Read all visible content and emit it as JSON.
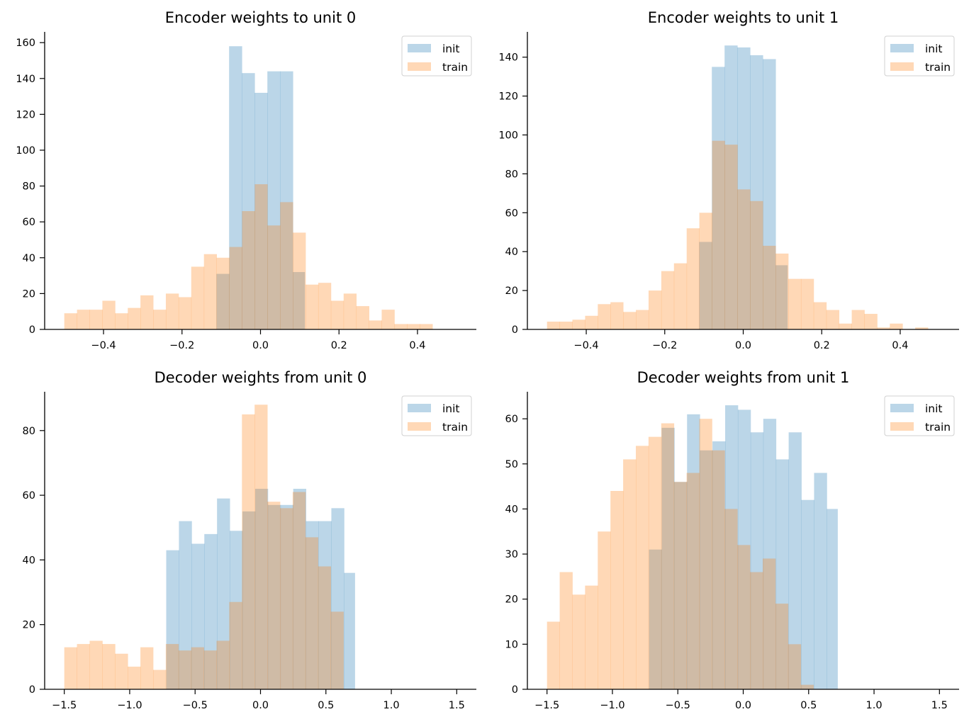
{
  "colors": {
    "init": "#1f77b4",
    "train": "#ff7f0e"
  },
  "chart_data": [
    {
      "type": "histogram",
      "title": "Encoder weights to unit 0",
      "xlim": [
        -0.55,
        0.55
      ],
      "ylim": [
        0,
        166
      ],
      "xticks": [
        -0.4,
        -0.2,
        0.0,
        0.2,
        0.4
      ],
      "xtick_labels": [
        "−0.4",
        "−0.2",
        "0.0",
        "0.2",
        "0.4"
      ],
      "yticks": [
        0,
        20,
        40,
        60,
        80,
        100,
        120,
        140,
        160
      ],
      "ytick_labels": [
        "0",
        "20",
        "40",
        "60",
        "80",
        "100",
        "120",
        "140",
        "160"
      ],
      "legend": {
        "position": "upper-right",
        "entries": [
          "init",
          "train"
        ]
      },
      "series": [
        {
          "name": "init",
          "bins": [
            -0.1125,
            -0.08,
            -0.0475,
            -0.015,
            0.0175,
            0.05,
            0.0825,
            0.1125
          ],
          "counts": [
            31,
            158,
            143,
            132,
            144,
            144,
            32
          ]
        },
        {
          "name": "train",
          "bins": [
            -0.5,
            -0.4676,
            -0.4353,
            -0.4029,
            -0.3706,
            -0.3382,
            -0.3059,
            -0.2735,
            -0.2412,
            -0.2088,
            -0.1765,
            -0.1441,
            -0.1118,
            -0.0794,
            -0.0471,
            -0.0147,
            0.0176,
            0.05,
            0.0824,
            0.1147,
            0.1471,
            0.1794,
            0.2118,
            0.2441,
            0.2765,
            0.3088,
            0.3412,
            0.3735,
            0.4059,
            0.4382
          ],
          "counts": [
            9,
            11,
            11,
            16,
            9,
            12,
            19,
            11,
            20,
            18,
            35,
            42,
            40,
            46,
            66,
            81,
            58,
            71,
            54,
            25,
            26,
            16,
            20,
            13,
            5,
            11,
            3,
            3,
            3
          ]
        }
      ]
    },
    {
      "type": "histogram",
      "title": "Encoder weights to unit 1",
      "xlim": [
        -0.55,
        0.55
      ],
      "ylim": [
        0,
        153
      ],
      "xticks": [
        -0.4,
        -0.2,
        0.0,
        0.2,
        0.4
      ],
      "xtick_labels": [
        "−0.4",
        "−0.2",
        "0.0",
        "0.2",
        "0.4"
      ],
      "yticks": [
        0,
        20,
        40,
        60,
        80,
        100,
        120,
        140
      ],
      "ytick_labels": [
        "0",
        "20",
        "40",
        "60",
        "80",
        "100",
        "120",
        "140"
      ],
      "legend": {
        "position": "upper-right",
        "entries": [
          "init",
          "train"
        ]
      },
      "series": [
        {
          "name": "init",
          "bins": [
            -0.1125,
            -0.08,
            -0.0475,
            -0.015,
            0.0175,
            0.05,
            0.0825,
            0.1125
          ],
          "counts": [
            45,
            135,
            146,
            145,
            141,
            139,
            33
          ]
        },
        {
          "name": "train",
          "bins": [
            -0.5,
            -0.4676,
            -0.4353,
            -0.4029,
            -0.3706,
            -0.3382,
            -0.3059,
            -0.2735,
            -0.2412,
            -0.2088,
            -0.1765,
            -0.1441,
            -0.1118,
            -0.0794,
            -0.0471,
            -0.0147,
            0.0176,
            0.05,
            0.0824,
            0.1147,
            0.1471,
            0.1794,
            0.2118,
            0.2441,
            0.2765,
            0.3088,
            0.3412,
            0.3735,
            0.4059,
            0.4382,
            0.4706,
            0.5029
          ],
          "counts": [
            4,
            4,
            5,
            7,
            13,
            14,
            9,
            10,
            20,
            30,
            34,
            52,
            60,
            97,
            95,
            72,
            66,
            43,
            39,
            26,
            26,
            14,
            10,
            3,
            10,
            8,
            1,
            3,
            0,
            1,
            0
          ]
        }
      ]
    },
    {
      "type": "histogram",
      "title": "Decoder weights from unit 0",
      "xlim": [
        -1.65,
        1.65
      ],
      "ylim": [
        0,
        92
      ],
      "xticks": [
        -1.5,
        -1.0,
        -0.5,
        0.0,
        0.5,
        1.0,
        1.5
      ],
      "xtick_labels": [
        "−1.5",
        "−1.0",
        "−0.5",
        "0.0",
        "0.5",
        "1.0",
        "1.5"
      ],
      "yticks": [
        0,
        20,
        40,
        60,
        80
      ],
      "ytick_labels": [
        "0",
        "20",
        "40",
        "60",
        "80"
      ],
      "legend": {
        "position": "upper-right",
        "entries": [
          "init",
          "train"
        ]
      },
      "series": [
        {
          "name": "init",
          "bins": [
            -0.7207,
            -0.6236,
            -0.5265,
            -0.4294,
            -0.3323,
            -0.2352,
            -0.1381,
            -0.041,
            0.0561,
            0.1532,
            0.2503,
            0.3474,
            0.4445,
            0.5416,
            0.6387,
            0.7207
          ],
          "counts": [
            43,
            52,
            45,
            48,
            59,
            49,
            55,
            62,
            57,
            57,
            62,
            52,
            52,
            56,
            36
          ]
        },
        {
          "name": "train",
          "bins": [
            -1.5,
            -1.403,
            -1.306,
            -1.209,
            -1.112,
            -1.015,
            -0.918,
            -0.821,
            -0.724,
            -0.627,
            -0.53,
            -0.433,
            -0.336,
            -0.239,
            -0.142,
            -0.045,
            0.052,
            0.149,
            0.246,
            0.343,
            0.44,
            0.537,
            0.634
          ],
          "counts": [
            13,
            14,
            15,
            14,
            11,
            7,
            13,
            6,
            14,
            12,
            13,
            12,
            15,
            27,
            85,
            88,
            58,
            56,
            61,
            47,
            38,
            24
          ]
        }
      ]
    },
    {
      "type": "histogram",
      "title": "Decoder weights from unit 1",
      "xlim": [
        -1.65,
        1.65
      ],
      "ylim": [
        0,
        66
      ],
      "xticks": [
        -1.5,
        -1.0,
        -0.5,
        0.0,
        0.5,
        1.0,
        1.5
      ],
      "xtick_labels": [
        "−1.5",
        "−1.0",
        "−0.5",
        "0.0",
        "0.5",
        "1.0",
        "1.5"
      ],
      "yticks": [
        0,
        10,
        20,
        30,
        40,
        50,
        60
      ],
      "ytick_labels": [
        "0",
        "10",
        "20",
        "30",
        "40",
        "50",
        "60"
      ],
      "legend": {
        "position": "upper-right",
        "entries": [
          "init",
          "train"
        ]
      },
      "series": [
        {
          "name": "init",
          "bins": [
            -0.7207,
            -0.6236,
            -0.5265,
            -0.4294,
            -0.3323,
            -0.2352,
            -0.1381,
            -0.041,
            0.0561,
            0.1532,
            0.2503,
            0.3474,
            0.4445,
            0.5416,
            0.6387,
            0.7207
          ],
          "counts": [
            31,
            58,
            46,
            61,
            53,
            55,
            63,
            62,
            57,
            60,
            51,
            57,
            42,
            48,
            40
          ]
        },
        {
          "name": "train",
          "bins": [
            -1.5,
            -1.403,
            -1.306,
            -1.209,
            -1.112,
            -1.015,
            -0.918,
            -0.821,
            -0.724,
            -0.627,
            -0.53,
            -0.433,
            -0.336,
            -0.239,
            -0.142,
            -0.045,
            0.052,
            0.149,
            0.246,
            0.343,
            0.44,
            0.537
          ],
          "counts": [
            15,
            26,
            21,
            23,
            35,
            44,
            51,
            54,
            56,
            59,
            46,
            48,
            60,
            53,
            40,
            32,
            26,
            29,
            19,
            10,
            1
          ]
        }
      ]
    }
  ]
}
